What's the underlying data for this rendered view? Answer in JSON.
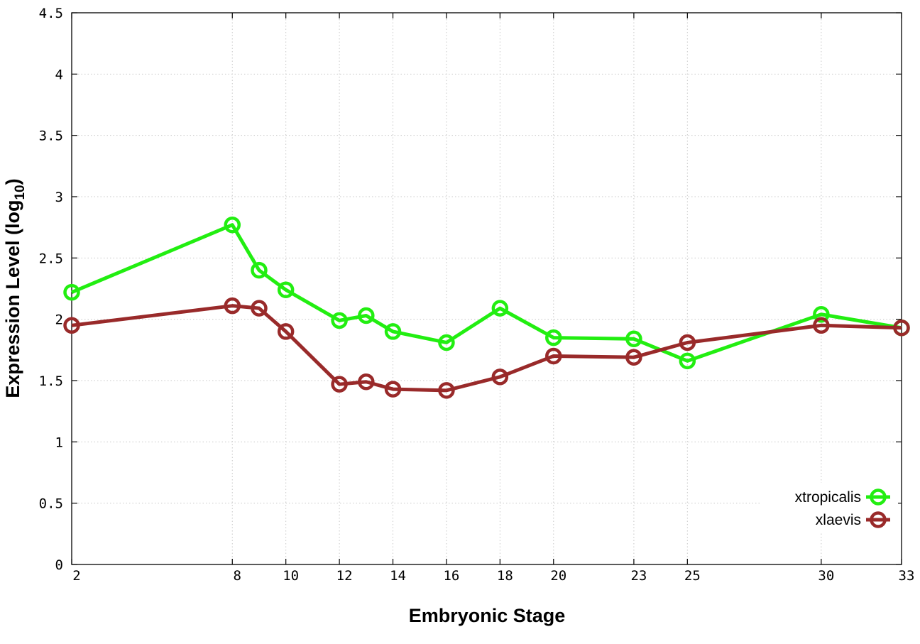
{
  "chart_data": {
    "type": "line",
    "xlabel": "Embryonic Stage",
    "ylabel": {
      "text": "Expression Level (log",
      "subscript": "10",
      "suffix": ")"
    },
    "xlim": [
      2,
      33
    ],
    "ylim": [
      0,
      4.5
    ],
    "x_ticks": [
      2,
      8,
      10,
      12,
      14,
      16,
      18,
      20,
      23,
      25,
      30,
      33
    ],
    "y_ticks": [
      {
        "value": 0,
        "label": "0"
      },
      {
        "value": 0.5,
        "label": "0.5"
      },
      {
        "value": 1,
        "label": "1"
      },
      {
        "value": 1.5,
        "label": "1.5"
      },
      {
        "value": 2,
        "label": "2"
      },
      {
        "value": 2.5,
        "label": "2.5"
      },
      {
        "value": 3,
        "label": "3"
      },
      {
        "value": 3.5,
        "label": "3.5"
      },
      {
        "value": 4,
        "label": "4"
      },
      {
        "value": 4.5,
        "label": "4.5"
      }
    ],
    "grid": true,
    "legend_position": "bottom-right",
    "series": [
      {
        "name": "xtropicalis",
        "color": "#22ee11",
        "x": [
          2,
          8,
          9,
          10,
          12,
          13,
          14,
          16,
          18,
          20,
          23,
          25,
          30,
          33
        ],
        "y": [
          2.22,
          2.77,
          2.4,
          2.24,
          1.99,
          2.03,
          1.9,
          1.81,
          2.09,
          1.85,
          1.84,
          1.66,
          2.04,
          1.93
        ]
      },
      {
        "name": "xlaevis",
        "color": "#992a2a",
        "x": [
          2,
          8,
          9,
          10,
          12,
          13,
          14,
          16,
          18,
          20,
          23,
          25,
          30,
          33
        ],
        "y": [
          1.95,
          2.11,
          2.09,
          1.9,
          1.47,
          1.49,
          1.43,
          1.42,
          1.53,
          1.7,
          1.69,
          1.81,
          1.95,
          1.93
        ]
      }
    ]
  }
}
